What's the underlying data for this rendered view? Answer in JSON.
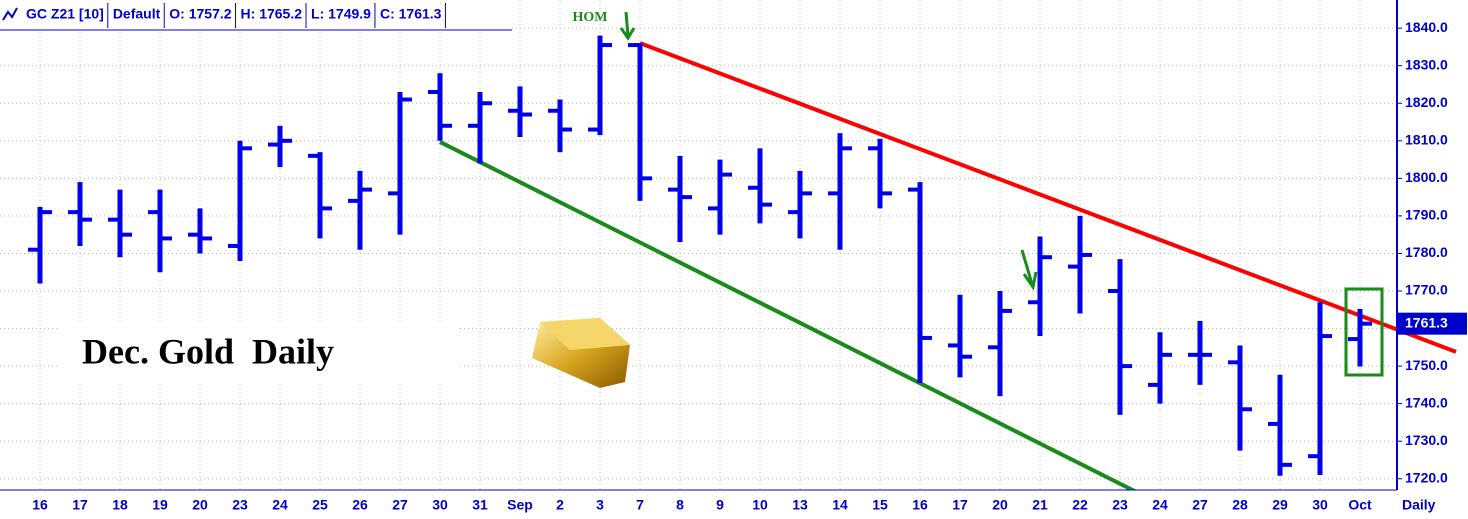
{
  "chart_data": {
    "type": "ohlc",
    "title": "Dec. Gold  Daily",
    "header": [
      "GC Z21 [10]",
      "Default",
      "O: 1757.2",
      "H: 1765.2",
      "L: 1749.9",
      "C: 1761.3"
    ],
    "annotations": [
      "HOM"
    ],
    "period_label": "Daily",
    "categories": [
      "16",
      "17",
      "18",
      "19",
      "20",
      "23",
      "24",
      "25",
      "26",
      "27",
      "30",
      "31",
      "Sep",
      "2",
      "3",
      "7",
      "8",
      "9",
      "10",
      "13",
      "14",
      "15",
      "16",
      "17",
      "20",
      "21",
      "22",
      "23",
      "24",
      "27",
      "28",
      "29",
      "30",
      "Oct"
    ],
    "series": [
      {
        "color": "#0000ee",
        "open": [
          1781,
          1791,
          1789,
          1791,
          1785,
          1782,
          1809,
          1806,
          1794,
          1796,
          1823,
          1814,
          1818,
          1818,
          1813,
          1835.5,
          1797,
          1792,
          1797.5,
          1791,
          1796,
          1808,
          1797,
          1755.5,
          1755,
          1767,
          1776.5,
          1770,
          1745,
          1753,
          1751,
          1734.6,
          1726,
          1757.2
        ],
        "high": [
          1792.4,
          1799,
          1797,
          1797,
          1792,
          1810,
          1814,
          1807,
          1802,
          1823,
          1828,
          1823,
          1824.5,
          1821,
          1838,
          1836,
          1806,
          1805,
          1808,
          1802,
          1812,
          1810.5,
          1799,
          1769,
          1770,
          1784.5,
          1790,
          1778.5,
          1759,
          1762,
          1755.5,
          1747.7,
          1767,
          1765.2
        ],
        "low": [
          1772,
          1782,
          1779,
          1775,
          1780,
          1778,
          1803,
          1784,
          1781,
          1785,
          1810,
          1804,
          1811,
          1807,
          1811.5,
          1794,
          1783,
          1785,
          1788,
          1784,
          1781,
          1792,
          1745.5,
          1747,
          1742,
          1758,
          1764,
          1737,
          1740,
          1745,
          1727.5,
          1720.8,
          1721,
          1749.9
        ],
        "close": [
          1791,
          1789,
          1785,
          1784,
          1784,
          1808,
          1810,
          1792,
          1797,
          1821,
          1814,
          1820,
          1817,
          1813,
          1835.5,
          1800,
          1795,
          1801,
          1793,
          1796,
          1808,
          1796,
          1757.5,
          1752.5,
          1764.7,
          1779,
          1779.6,
          1750,
          1753,
          1753,
          1738.5,
          1723.7,
          1758,
          1761.3
        ]
      }
    ],
    "trendlines": [
      {
        "color": "#ff0000",
        "start": [
          15,
          1836
        ],
        "end": [
          35.4,
          1753.8
        ]
      },
      {
        "color": "#1a8a1a",
        "start": [
          10,
          1809.7
        ],
        "end": [
          28.75,
          1709.3
        ]
      }
    ],
    "ylim": [
      1717,
      1847.5
    ],
    "yticks": [
      {
        "value": 1720,
        "label": "1720.0"
      },
      {
        "value": 1730,
        "label": "1730.0"
      },
      {
        "value": 1740,
        "label": "1740.0"
      },
      {
        "value": 1750,
        "label": "1750.0"
      },
      {
        "value": 1760,
        "label": "1760.0"
      },
      {
        "value": 1770,
        "label": "1770.0"
      },
      {
        "value": 1780,
        "label": "1780.0"
      },
      {
        "value": 1790,
        "label": "1790.0"
      },
      {
        "value": 1800,
        "label": "1800.0"
      },
      {
        "value": 1810,
        "label": "1810.0"
      },
      {
        "value": 1820,
        "label": "1820.0"
      },
      {
        "value": 1830,
        "label": "1830.0"
      },
      {
        "value": 1840,
        "label": "1840.0"
      }
    ],
    "grid": true
  }
}
